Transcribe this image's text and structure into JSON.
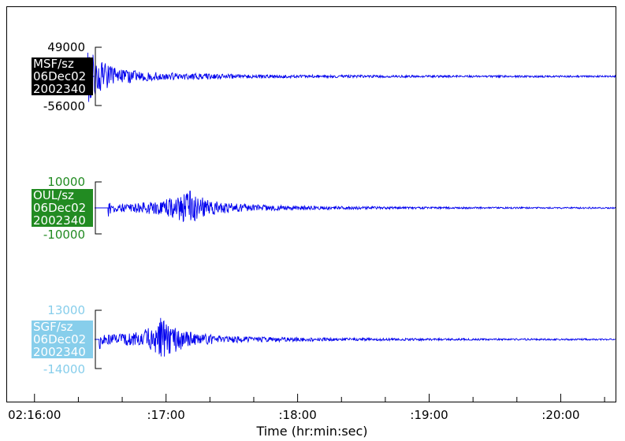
{
  "chart_data": {
    "type": "line",
    "title": "",
    "xlabel": "Time (hr:min:sec)",
    "x_ticks": [
      {
        "label": "02:16:00",
        "t": 0
      },
      {
        "label": ":17:00",
        "t": 60
      },
      {
        "label": ":18:00",
        "t": 120
      },
      {
        "label": ":19:00",
        "t": 180
      },
      {
        "label": ":20:00",
        "t": 240
      }
    ],
    "xlim_seconds_after_02_16_00": [
      -12.5,
      265
    ],
    "minor_tick_seconds": 20,
    "trace_color": "#0000ee",
    "series": [
      {
        "name": "MSF/sz",
        "date": "06Dec02",
        "julian": "2002340",
        "label_bg": "#000000",
        "label_fg": "#ffffff",
        "scale_color": "#000000",
        "ymax": 49000,
        "ymin": -56000,
        "ymax_label": "49000",
        "ymin_label": "-56000",
        "onset_s": 10.5,
        "peak_s": 24,
        "end_s": 265,
        "amp": 1.0
      },
      {
        "name": "OUL/sz",
        "date": "06Dec02",
        "julian": "2002340",
        "label_bg": "#228b22",
        "label_fg": "#ffffff",
        "scale_color": "#228b22",
        "ymax": 10000,
        "ymin": -10000,
        "ymax_label": "10000",
        "ymin_label": "-10000",
        "onset_s": 33.5,
        "peak_s": 69,
        "end_s": 265,
        "amp": 0.85
      },
      {
        "name": "SGF/sz",
        "date": "06Dec02",
        "julian": "2002340",
        "label_bg": "#87ceeb",
        "label_fg": "#ffffff",
        "scale_color": "#87ceeb",
        "ymax": 13000,
        "ymin": -14000,
        "ymax_label": "13000",
        "ymin_label": "-14000",
        "onset_s": 29.5,
        "peak_s": 57,
        "end_s": 265,
        "amp": 0.85
      }
    ]
  }
}
